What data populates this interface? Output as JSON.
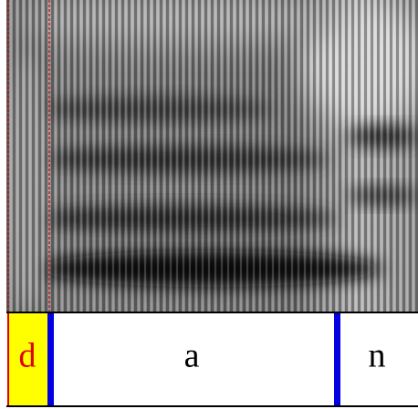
{
  "segments": [
    {
      "label": "d"
    },
    {
      "label": "a"
    },
    {
      "label": "n"
    }
  ]
}
